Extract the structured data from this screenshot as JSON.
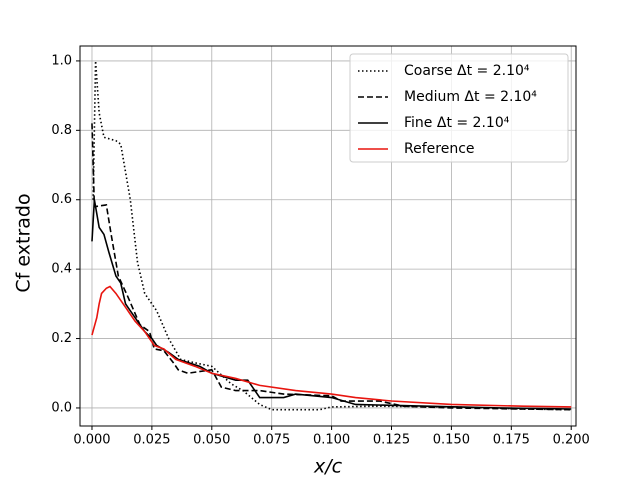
{
  "chart_data": {
    "type": "line",
    "xlabel": "x/c",
    "ylabel": "Cf extrado",
    "xlim": [
      -0.005,
      0.202
    ],
    "ylim": [
      -0.052,
      1.043
    ],
    "xticks": [
      {
        "value": 0,
        "label": "0.000"
      },
      {
        "value": 0.025,
        "label": "0.025"
      },
      {
        "value": 0.05,
        "label": "0.050"
      },
      {
        "value": 0.075,
        "label": "0.075"
      },
      {
        "value": 0.1,
        "label": "0.100"
      },
      {
        "value": 0.125,
        "label": "0.125"
      },
      {
        "value": 0.15,
        "label": "0.150"
      },
      {
        "value": 0.175,
        "label": "0.175"
      },
      {
        "value": 0.2,
        "label": "0.200"
      }
    ],
    "yticks": [
      {
        "value": 0,
        "label": "0.0"
      },
      {
        "value": 0.2,
        "label": "0.2"
      },
      {
        "value": 0.4,
        "label": "0.4"
      },
      {
        "value": 0.6,
        "label": "0.6"
      },
      {
        "value": 0.8,
        "label": "0.8"
      },
      {
        "value": 1,
        "label": "1.0"
      }
    ],
    "grid": true,
    "legend": "upper right",
    "series": [
      {
        "name": "Coarse Δt = 2.10⁴",
        "color": "#000000",
        "linestyle": "dotted",
        "x": [
          0.0005,
          0.0015,
          0.003,
          0.005,
          0.01,
          0.012,
          0.016,
          0.019,
          0.022,
          0.027,
          0.032,
          0.037,
          0.043,
          0.05,
          0.058,
          0.063,
          0.07,
          0.075,
          0.095,
          0.1,
          0.12,
          0.15,
          0.18,
          0.2
        ],
        "values": [
          0.6,
          1.0,
          0.85,
          0.78,
          0.77,
          0.76,
          0.6,
          0.42,
          0.33,
          0.28,
          0.2,
          0.14,
          0.13,
          0.12,
          0.07,
          0.05,
          0.01,
          -0.005,
          -0.005,
          0.003,
          0.005,
          0.003,
          -0.003,
          -0.005
        ]
      },
      {
        "name": "Medium Δt = 2.10⁴",
        "color": "#000000",
        "linestyle": "dashed",
        "x": [
          0,
          0.001,
          0.006,
          0.008,
          0.011,
          0.015,
          0.02,
          0.024,
          0.026,
          0.03,
          0.034,
          0.036,
          0.04,
          0.05,
          0.054,
          0.06,
          0.07,
          0.08,
          0.1,
          0.104,
          0.12,
          0.13,
          0.15,
          0.2
        ],
        "values": [
          0.82,
          0.58,
          0.585,
          0.5,
          0.38,
          0.32,
          0.24,
          0.22,
          0.17,
          0.165,
          0.13,
          0.11,
          0.1,
          0.11,
          0.06,
          0.05,
          0.05,
          0.04,
          0.035,
          0.02,
          0.02,
          0.005,
          0.0,
          -0.005
        ]
      },
      {
        "name": "Fine Δt = 2.10⁴",
        "color": "#000000",
        "linestyle": "solid",
        "x": [
          0,
          0.001,
          0.003,
          0.005,
          0.007,
          0.01,
          0.012,
          0.014,
          0.018,
          0.022,
          0.025,
          0.027,
          0.032,
          0.036,
          0.045,
          0.05,
          0.06,
          0.065,
          0.07,
          0.08,
          0.085,
          0.1,
          0.11,
          0.14,
          0.17,
          0.2
        ],
        "values": [
          0.48,
          0.6,
          0.52,
          0.5,
          0.45,
          0.38,
          0.36,
          0.3,
          0.26,
          0.22,
          0.2,
          0.18,
          0.16,
          0.14,
          0.12,
          0.1,
          0.08,
          0.08,
          0.03,
          0.03,
          0.04,
          0.03,
          0.01,
          0.005,
          0.0,
          -0.003
        ]
      },
      {
        "name": "Reference",
        "color": "#e8150f",
        "linestyle": "solid",
        "x": [
          0,
          0.002,
          0.003,
          0.004,
          0.006,
          0.0075,
          0.01,
          0.013,
          0.018,
          0.022,
          0.026,
          0.03,
          0.035,
          0.043,
          0.05,
          0.06,
          0.07,
          0.085,
          0.1,
          0.11,
          0.125,
          0.15,
          0.18,
          0.2
        ],
        "values": [
          0.21,
          0.26,
          0.3,
          0.33,
          0.345,
          0.35,
          0.33,
          0.3,
          0.25,
          0.22,
          0.18,
          0.17,
          0.14,
          0.12,
          0.1,
          0.085,
          0.065,
          0.05,
          0.04,
          0.03,
          0.02,
          0.01,
          0.005,
          0.003
        ]
      }
    ]
  }
}
